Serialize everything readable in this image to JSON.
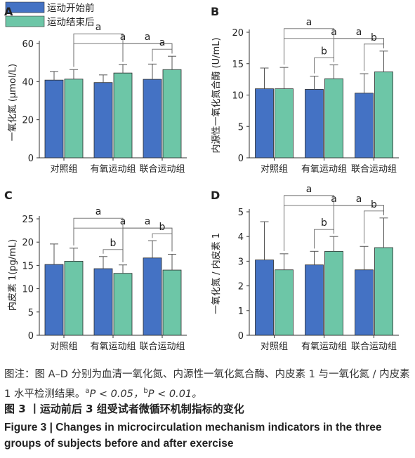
{
  "legend": {
    "before": "运动开始前",
    "after": "运动结束后"
  },
  "colors": {
    "before": "#4472c4",
    "after": "#6dc6a7",
    "bracket": "#6a6a6a"
  },
  "groups": [
    "对照组",
    "有氧运动组",
    "联合运动组"
  ],
  "chart_data": [
    {
      "panel": "A",
      "type": "bar",
      "ylabel": "一氧化氮 (μmol/L)",
      "ylim": [
        0,
        60
      ],
      "yticks": [
        0,
        20,
        40,
        60
      ],
      "categories": [
        "对照组",
        "有氧运动组",
        "联合运动组"
      ],
      "series": [
        {
          "name": "运动开始前",
          "values": [
            40.8,
            39.5,
            41.2
          ],
          "errors": [
            4.5,
            4.0,
            8.0
          ]
        },
        {
          "name": "运动结束后",
          "values": [
            41.3,
            44.5,
            46.3
          ],
          "errors": [
            5.0,
            4.5,
            7.0
          ]
        }
      ],
      "brackets": [
        {
          "from": "对照组-运动结束后",
          "to": "联合运动组-运动结束后",
          "label": "a"
        },
        {
          "from": "对照组-运动结束后",
          "to": "有氧运动组-运动结束后",
          "label": "a"
        },
        {
          "from": "有氧运动组-运动结束后",
          "to": "联合运动组-运动结束后",
          "label": "a"
        },
        {
          "from": "联合运动组-运动开始前",
          "to": "联合运动组-运动结束后",
          "label": "a"
        }
      ]
    },
    {
      "panel": "B",
      "type": "bar",
      "ylabel": "内源性一氧化氮合酶 (U/mL)",
      "ylim": [
        0,
        20
      ],
      "yticks": [
        0,
        5,
        10,
        15,
        20
      ],
      "categories": [
        "对照组",
        "有氧运动组",
        "联合运动组"
      ],
      "series": [
        {
          "name": "运动开始前",
          "values": [
            11.0,
            10.9,
            10.3
          ],
          "errors": [
            3.3,
            2.1,
            3.1
          ]
        },
        {
          "name": "运动结束后",
          "values": [
            11.0,
            12.6,
            13.7
          ],
          "errors": [
            3.4,
            2.2,
            3.3
          ]
        }
      ],
      "brackets": [
        {
          "from": "对照组-运动结束后",
          "to": "联合运动组-运动结束后",
          "label": "a"
        },
        {
          "from": "对照组-运动结束后",
          "to": "有氧运动组-运动结束后",
          "label": "a"
        },
        {
          "from": "有氧运动组-运动结束后",
          "to": "联合运动组-运动结束后",
          "label": "a"
        },
        {
          "from": "有氧运动组-运动开始前",
          "to": "有氧运动组-运动结束后",
          "label": "b"
        },
        {
          "from": "联合运动组-运动开始前",
          "to": "联合运动组-运动结束后",
          "label": "b"
        }
      ]
    },
    {
      "panel": "C",
      "type": "bar",
      "ylabel": "内皮素 1(pg/mL)",
      "ylim": [
        0,
        25
      ],
      "yticks": [
        0,
        5,
        10,
        15,
        20,
        25
      ],
      "categories": [
        "对照组",
        "有氧运动组",
        "联合运动组"
      ],
      "series": [
        {
          "name": "运动开始前",
          "values": [
            15.2,
            14.3,
            16.6
          ],
          "errors": [
            4.4,
            2.6,
            3.7
          ]
        },
        {
          "name": "运动结束后",
          "values": [
            15.9,
            13.3,
            14.0
          ],
          "errors": [
            2.8,
            1.8,
            3.4
          ]
        }
      ],
      "brackets": [
        {
          "from": "对照组-运动结束后",
          "to": "联合运动组-运动结束后",
          "label": "a"
        },
        {
          "from": "对照组-运动结束后",
          "to": "有氧运动组-运动结束后",
          "label": "a"
        },
        {
          "from": "有氧运动组-运动结束后",
          "to": "联合运动组-运动结束后",
          "label": "a"
        },
        {
          "from": "有氧运动组-运动开始前",
          "to": "有氧运动组-运动结束后",
          "label": "b"
        },
        {
          "from": "联合运动组-运动开始前",
          "to": "联合运动组-运动结束后",
          "label": "b"
        }
      ]
    },
    {
      "panel": "D",
      "type": "bar",
      "ylabel": "一氧化氮 / 内皮素 1",
      "ylim": [
        0,
        5
      ],
      "yticks": [
        0,
        1,
        2,
        3,
        4,
        5
      ],
      "categories": [
        "对照组",
        "有氧运动组",
        "联合运动组"
      ],
      "series": [
        {
          "name": "运动开始前",
          "values": [
            3.05,
            2.85,
            2.65
          ],
          "errors": [
            1.55,
            0.55,
            0.95
          ]
        },
        {
          "name": "运动结束后",
          "values": [
            2.65,
            3.4,
            3.55
          ],
          "errors": [
            0.65,
            0.6,
            1.2
          ]
        }
      ],
      "brackets": [
        {
          "from": "对照组-运动结束后",
          "to": "联合运动组-运动结束后",
          "label": "a"
        },
        {
          "from": "对照组-运动结束后",
          "to": "有氧运动组-运动结束后",
          "label": "a"
        },
        {
          "from": "有氧运动组-运动结束后",
          "to": "联合运动组-运动结束后",
          "label": "a"
        },
        {
          "from": "有氧运动组-运动开始前",
          "to": "有氧运动组-运动结束后",
          "label": "b"
        },
        {
          "from": "联合运动组-运动开始前",
          "to": "联合运动组-运动结束后",
          "label": "b"
        }
      ]
    }
  ],
  "caption": {
    "note_prefix": "图注：图 A–D 分别为血清一氧化氮、内源性一氧化氮合酶、内皮素 1 与一氧化氮 / 内皮素 1 水平检测结果。",
    "sig_a_mark": "a",
    "sig_a_text": "P < 0.05，",
    "sig_b_mark": "b",
    "sig_b_text": "P < 0.01。",
    "title_cn": "图 3  丨运动前后 3 组受试者微循环机制指标的变化",
    "title_en": "Figure 3  |  Changes in microcirculation mechanism indicators in the three groups of subjects before and after exercise"
  }
}
